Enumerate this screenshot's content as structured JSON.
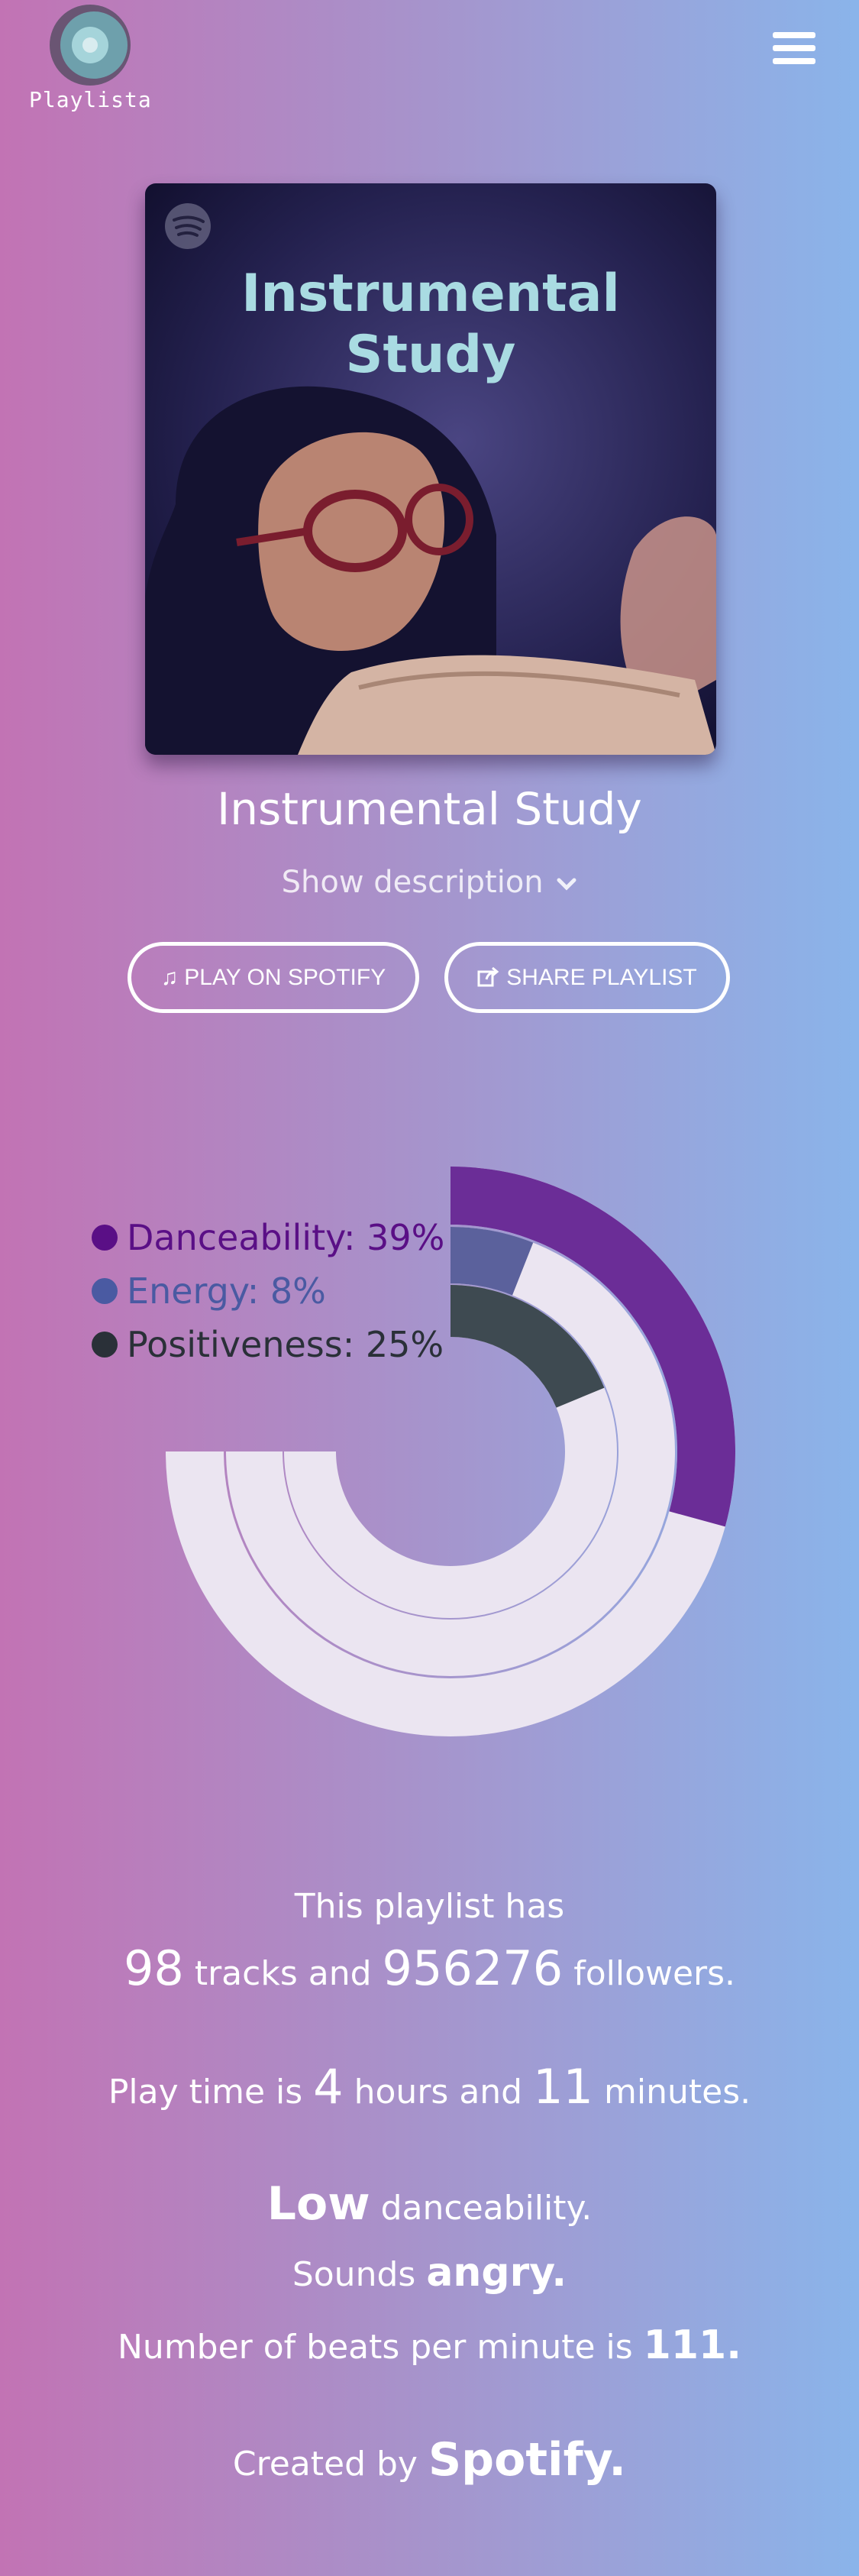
{
  "header": {
    "logo_text": "Playlista",
    "menu_icon": "hamburger-menu-icon"
  },
  "cover": {
    "title": "Instrumental Study",
    "title_line1": "Instrumental",
    "title_line2": "Study",
    "brand_icon": "spotify-icon"
  },
  "playlist": {
    "name": "Instrumental Study",
    "show_description": "Show description",
    "play_button": "PLAY ON SPOTIFY",
    "share_button": "SHARE PLAYLIST"
  },
  "chart_data": {
    "type": "radial-bar",
    "series": [
      {
        "name": "Danceability",
        "value": 39,
        "label": "Danceability: 39%",
        "color": "#6b2d97",
        "legend_color": "#5a0f86"
      },
      {
        "name": "Energy",
        "value": 8,
        "label": "Energy: 8%",
        "color": "#5b619c",
        "legend_color": "#4a5aa2"
      },
      {
        "name": "Positiveness",
        "value": 25,
        "label": "Positiveness: 25%",
        "color": "#3e4a51",
        "legend_color": "#2a3038"
      }
    ],
    "max": 100,
    "track_color": "#ebe5f1"
  },
  "stats": {
    "intro": "This playlist has",
    "tracks_count": "98",
    "tracks_word": "tracks and",
    "followers_count": "956276",
    "followers_word": "followers.",
    "playtime_prefix": "Play time is",
    "hours": "4",
    "hours_word": "hours and",
    "minutes": "11",
    "minutes_word": "minutes.",
    "danceability_level": "Low",
    "danceability_word": "danceability.",
    "sounds_prefix": "Sounds",
    "mood": "angry.",
    "bpm_prefix": "Number of beats per minute is",
    "bpm": "111.",
    "created_prefix": "Created by",
    "creator": "Spotify."
  }
}
